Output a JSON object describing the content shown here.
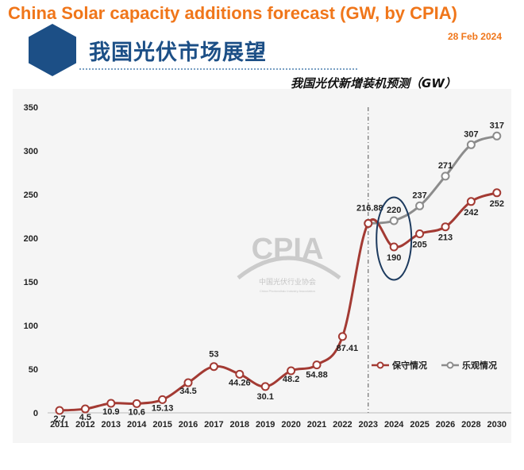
{
  "header": {
    "title": "China Solar capacity additions forecast (GW, by CPIA)",
    "date": "28 Feb 2024",
    "slide_heading": "我国光伏市场展望"
  },
  "watermark": {
    "logo_text": "CPIA",
    "org_name": "中国光伏行业协会",
    "org_name_en": "China Photovoltaic Industry Association"
  },
  "chart_data": {
    "type": "line",
    "title": "我国光伏新增装机预测（GW）",
    "xlabel": "",
    "ylabel": "",
    "categories": [
      "2011",
      "2012",
      "2013",
      "2014",
      "2015",
      "2016",
      "2017",
      "2018",
      "2019",
      "2020",
      "2021",
      "2022",
      "2023",
      "2024",
      "2025",
      "2026",
      "2028",
      "2030"
    ],
    "ylim": [
      0,
      350
    ],
    "yticks": [
      0,
      50,
      100,
      150,
      200,
      250,
      300,
      350
    ],
    "grid": false,
    "legend_position": "right",
    "series": [
      {
        "name": "保守情况",
        "color": "#a33a33",
        "values": [
          2.7,
          4.5,
          10.9,
          10.6,
          15.13,
          34.5,
          53,
          44.26,
          30.1,
          48.2,
          54.88,
          87.41,
          216.88,
          190,
          205,
          213,
          242,
          252
        ],
        "labels": [
          "2.7",
          "4.5",
          "10.9",
          "10.6",
          "15.13",
          "34.5",
          "53",
          "44.26",
          "30.1",
          "48.2",
          "54.88",
          "87.41",
          "216.88",
          "190",
          "205",
          "213",
          "242",
          "252"
        ]
      },
      {
        "name": "乐观情况",
        "color": "#8c8c8c",
        "values": [
          null,
          null,
          null,
          null,
          null,
          null,
          null,
          null,
          null,
          null,
          null,
          null,
          216.88,
          220,
          237,
          271,
          307,
          317
        ],
        "labels": [
          "",
          "",
          "",
          "",
          "",
          "",
          "",
          "",
          "",
          "",
          "",
          "",
          "",
          "220",
          "237",
          "271",
          "307",
          "317"
        ]
      }
    ],
    "annotations": [
      "dashed vertical divider at 2023",
      "ellipse highlighting 2024 values"
    ]
  }
}
